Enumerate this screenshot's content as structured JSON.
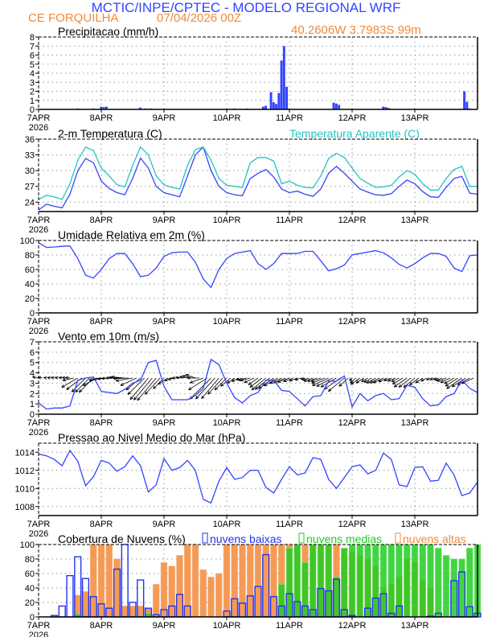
{
  "header": {
    "title": "MCTIC/INPE/CPTEC - MODELO REGIONAL WRF",
    "location": "CE FORQUILHA",
    "run": "07/04/2026 00Z",
    "coords": "40.2606W 3.7983S 99m"
  },
  "colors": {
    "title": "#3344ff",
    "subtitle": "#f08a3c",
    "line": "#3344ff",
    "apparent": "#22c4c4",
    "low": "#2233ee",
    "mid": "#22cc22",
    "high": "#f59a55"
  },
  "x_axis": {
    "labels": [
      "7APR",
      "8APR",
      "9APR",
      "10APR",
      "11APR",
      "12APR",
      "13APR"
    ],
    "year": "2026",
    "hours_range": [
      0,
      168
    ],
    "step_hours": 3
  },
  "chart_data": [
    {
      "type": "bar",
      "title": "Precipitacao (mm/h)",
      "ylim": [
        0,
        8
      ],
      "yticks": [
        0,
        1,
        2,
        3,
        4,
        5,
        6,
        7,
        8
      ],
      "grid": true,
      "points": [
        [
          15,
          0.1
        ],
        [
          21,
          0.1
        ],
        [
          24,
          0.3
        ],
        [
          25,
          0.25
        ],
        [
          26,
          0.3
        ],
        [
          39,
          0.2
        ],
        [
          41,
          0.1
        ],
        [
          43,
          0.1
        ],
        [
          75,
          0.1
        ],
        [
          80,
          0.1
        ],
        [
          86,
          0.3
        ],
        [
          87,
          0.4
        ],
        [
          89,
          1.9
        ],
        [
          90,
          0.8
        ],
        [
          91,
          0.6
        ],
        [
          92,
          1.8
        ],
        [
          93,
          5.4
        ],
        [
          94,
          7.0
        ],
        [
          95,
          2.5
        ],
        [
          113,
          0.75
        ],
        [
          114,
          0.65
        ],
        [
          115,
          0.5
        ],
        [
          132,
          0.3
        ],
        [
          133,
          0.25
        ],
        [
          134,
          0.15
        ],
        [
          163,
          2.0
        ],
        [
          164,
          0.85
        ],
        [
          165,
          0.1
        ]
      ]
    },
    {
      "type": "line",
      "title": "2-m Temperatura (C)",
      "ylim": [
        22.2,
        36
      ],
      "yticks": [
        24,
        27,
        30,
        33,
        36
      ],
      "grid": true,
      "series": [
        {
          "values": [
            22.5,
            23.6,
            23.2,
            22.9,
            25.5,
            30,
            32.3,
            31.5,
            28,
            26.6,
            25.8,
            25.4,
            28.5,
            32.4,
            30.5,
            27,
            25.8,
            25.4,
            25,
            29,
            33,
            34.5,
            30,
            27,
            25.8,
            25.4,
            25.2,
            28.5,
            29.5,
            30.2,
            28.8,
            26.5,
            25.8,
            26.1,
            25.5,
            25.1,
            26.5,
            29.5,
            30.8,
            29.5,
            28,
            26.5,
            25.9,
            25.4,
            25.3,
            25.6,
            27,
            28.2,
            27.5,
            26,
            25,
            24.9,
            26.8,
            28.5,
            28.9,
            25.7,
            25.5
          ]
        },
        {
          "name": "Temperatura Aparente (C)",
          "values": [
            24.5,
            25.3,
            25,
            24.5,
            27.5,
            32,
            34.5,
            33.8,
            30.5,
            29,
            27.3,
            26.9,
            31,
            34.5,
            33,
            29,
            27.3,
            26.8,
            26.5,
            31,
            34,
            34.5,
            32,
            28.5,
            27.2,
            27,
            26.8,
            31.5,
            32.5,
            32.5,
            31.8,
            27.5,
            28,
            27.2,
            26.8,
            26.7,
            29,
            32.3,
            33.3,
            32.5,
            30.5,
            28.5,
            27.6,
            26.8,
            26.9,
            27.2,
            28.8,
            30,
            29.3,
            27.5,
            26.3,
            26.3,
            28.5,
            30.2,
            30.8,
            27,
            27
          ]
        }
      ]
    },
    {
      "type": "line",
      "title": "Umidade Relativa em 2m (%)",
      "ylim": [
        0,
        100
      ],
      "yticks": [
        0,
        20,
        40,
        60,
        80,
        100
      ],
      "grid": true,
      "series": [
        {
          "values": [
            97,
            90.5,
            91,
            92,
            92.5,
            75,
            52,
            48,
            60,
            75,
            82,
            82,
            68,
            50,
            52,
            62,
            78,
            83,
            84,
            84,
            70,
            47,
            35,
            60,
            75,
            82,
            84,
            86,
            68,
            60,
            68,
            82,
            82,
            82,
            85,
            85,
            72,
            58,
            61,
            66,
            80,
            82,
            84,
            86,
            83,
            76,
            67,
            62,
            68,
            76,
            82,
            82,
            78,
            62,
            57,
            79,
            80
          ]
        }
      ]
    },
    {
      "type": "line",
      "title": "Vento em 10m (m/s)",
      "ylim": [
        0,
        7
      ],
      "yticks": [
        0,
        1,
        2,
        3,
        4,
        5,
        6,
        7
      ],
      "grid": true,
      "vector_baseline": 3.5,
      "series": [
        {
          "values": [
            1.1,
            0.5,
            0.6,
            0.6,
            0.8,
            3.3,
            3.5,
            3.6,
            2.2,
            2.1,
            2.0,
            2.4,
            3.0,
            3.3,
            5.0,
            5.2,
            2.7,
            1.4,
            1.4,
            1.4,
            1.8,
            2.5,
            5.3,
            4.8,
            3.0,
            1.6,
            1.1,
            1.8,
            2.1,
            3.3,
            3.3,
            2.3,
            2.2,
            1.5,
            0.8,
            1.7,
            1.8,
            3.2,
            3.2,
            3.7,
            0.7,
            2.0,
            1.3,
            1.8,
            2.0,
            1.4,
            1.5,
            2.8,
            2.6,
            1.5,
            0.8,
            0.9,
            1.7,
            2.0,
            3.3,
            2.5,
            2.1
          ]
        }
      ],
      "direction_from_deg": [
        100,
        100,
        100,
        100,
        95,
        60,
        45,
        45,
        80,
        85,
        90,
        95,
        80,
        50,
        40,
        40,
        45,
        70,
        90,
        100,
        110,
        70,
        45,
        40,
        45,
        55,
        70,
        75,
        55,
        50,
        55,
        65,
        70,
        70,
        75,
        70,
        70,
        65,
        60,
        50,
        45,
        55,
        60,
        60,
        65,
        70,
        65,
        55,
        50,
        55,
        65,
        70,
        70,
        60,
        55,
        60,
        70
      ]
    },
    {
      "type": "line",
      "title": "Pressao ao Nivel Medio do Mar (hPa)",
      "ylim": [
        1007,
        1015
      ],
      "yticks": [
        1008,
        1010,
        1012,
        1014
      ],
      "grid": true,
      "series": [
        {
          "values": [
            1013.8,
            1013.6,
            1013.2,
            1012.5,
            1014.2,
            1013.0,
            1010.3,
            1011.3,
            1013.1,
            1012.8,
            1011.9,
            1012.4,
            1013.6,
            1012.5,
            1009.6,
            1010.4,
            1013.3,
            1012.0,
            1012.3,
            1013.1,
            1012.0,
            1008.8,
            1008.4,
            1010.8,
            1012.3,
            1011.0,
            1011.2,
            1012.0,
            1012.0,
            1010.1,
            1009.5,
            1011.0,
            1012.4,
            1011.5,
            1011.7,
            1013.4,
            1013.2,
            1011.0,
            1010.0,
            1011.2,
            1012.4,
            1012.6,
            1011.6,
            1012.0,
            1013.9,
            1013.2,
            1010.4,
            1010.2,
            1012.3,
            1012.4,
            1010.8,
            1010.9,
            1012.8,
            1011.5,
            1009.2,
            1009.5,
            1010.7
          ]
        }
      ]
    },
    {
      "type": "bar",
      "title": "Cobertura de Nuvens (%)",
      "ylim": [
        0,
        100
      ],
      "yticks": [
        0,
        20,
        40,
        60,
        80,
        100
      ],
      "grid": true,
      "series": [
        {
          "name": "nuvens altas",
          "values": [
            0,
            0,
            0,
            0,
            0,
            30,
            35,
            100,
            100,
            100,
            80,
            15,
            15,
            15,
            12,
            45,
            75,
            70,
            85,
            100,
            100,
            65,
            55,
            60,
            100,
            100,
            100,
            100,
            100,
            100,
            100,
            100,
            100,
            100,
            100,
            100,
            100,
            100,
            100,
            95,
            90,
            85,
            80,
            70,
            40,
            45,
            55,
            80,
            75,
            50,
            40,
            0,
            0,
            0,
            0,
            0,
            0
          ]
        },
        {
          "name": "nuvens medias",
          "values": [
            0,
            0,
            0,
            0,
            0,
            4,
            0,
            0,
            0,
            0,
            0,
            0,
            0,
            0,
            5,
            0,
            0,
            0,
            0,
            0,
            0,
            0,
            0,
            0,
            0,
            0,
            0,
            0,
            0,
            0,
            0,
            45,
            95,
            100,
            75,
            100,
            100,
            100,
            55,
            95,
            100,
            100,
            100,
            100,
            100,
            100,
            100,
            100,
            100,
            100,
            100,
            95,
            85,
            80,
            80,
            95,
            100
          ]
        },
        {
          "name": "nuvens baixas",
          "values": [
            0,
            0,
            2,
            15,
            57,
            83,
            53,
            28,
            18,
            12,
            66,
            100,
            20,
            51,
            12,
            3,
            10,
            15,
            31,
            15,
            0,
            0,
            0,
            0,
            8,
            25,
            19,
            29,
            42,
            86,
            28,
            15,
            32,
            21,
            15,
            10,
            39,
            36,
            52,
            10,
            2,
            0,
            12,
            26,
            32,
            5,
            15,
            0,
            0,
            0,
            1,
            5,
            0,
            50,
            62,
            14,
            5
          ]
        }
      ]
    }
  ]
}
